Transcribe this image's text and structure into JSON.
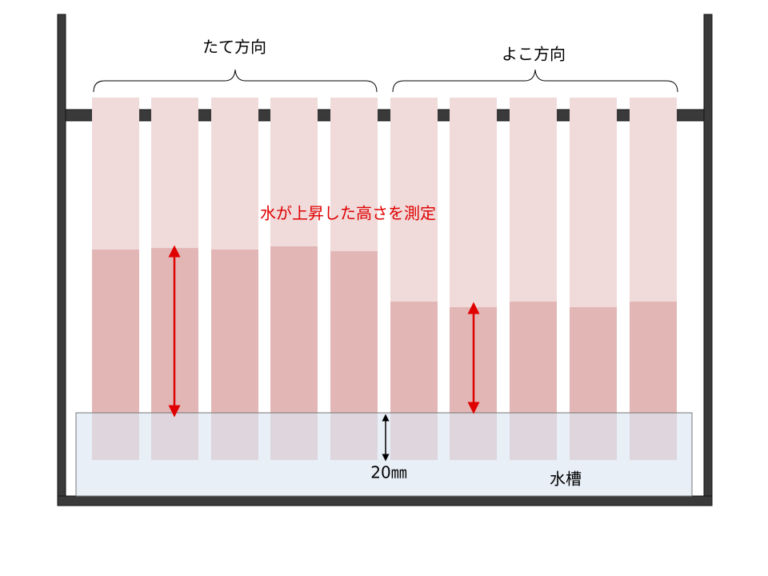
{
  "labels": {
    "vertical": "たて方向",
    "horizontal": "よこ方向",
    "measure": "水が上昇した高さを測定",
    "depth": "20㎜",
    "tank": "水槽"
  }
}
